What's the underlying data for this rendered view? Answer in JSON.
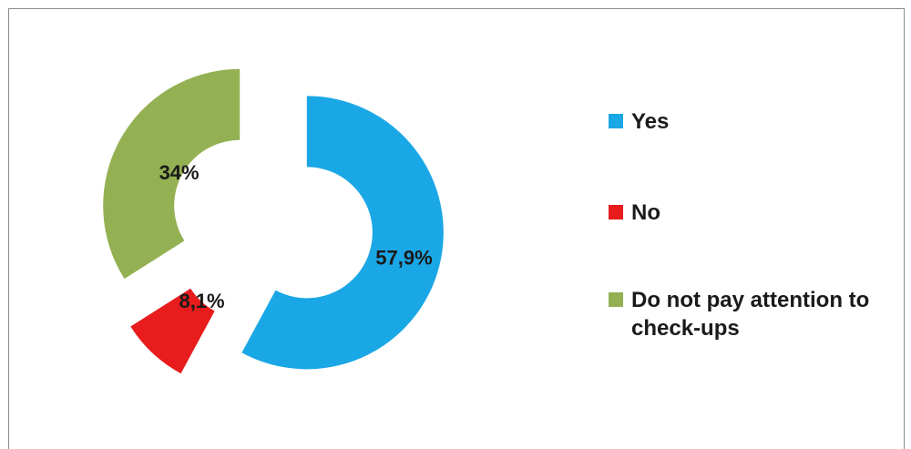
{
  "chart_data": {
    "type": "pie",
    "variant": "exploded-donut",
    "title": "",
    "categories": [
      "Yes",
      "No",
      "Do not pay attention to check-ups"
    ],
    "values": [
      57.9,
      8.1,
      34
    ],
    "value_labels": [
      "57,9%",
      "8,1%",
      "34%"
    ],
    "unit": "%",
    "colors": [
      "#1AA7E6",
      "#E81C1C",
      "#93B153"
    ],
    "legend_position": "right"
  }
}
